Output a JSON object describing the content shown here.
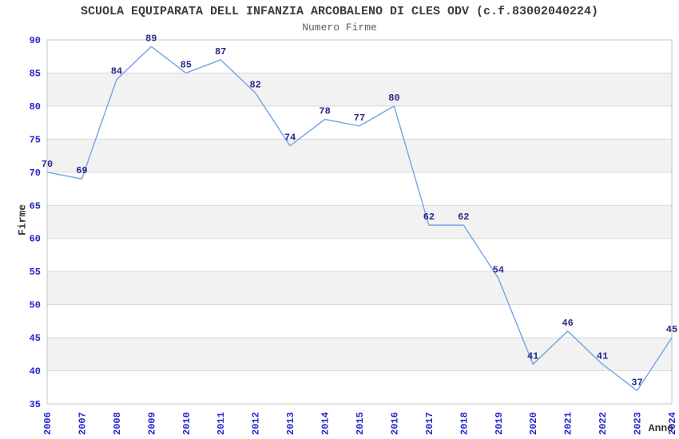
{
  "title": "SCUOLA EQUIPARATA DELL INFANZIA ARCOBALENO DI CLES ODV (c.f.83002040224)",
  "subtitle": "Numero Firme",
  "chart_data": {
    "type": "line",
    "title": "SCUOLA EQUIPARATA DELL INFANZIA ARCOBALENO DI CLES ODV (c.f.83002040224)",
    "subtitle": "Numero Firme",
    "xlabel": "Anno",
    "ylabel": "Firme",
    "categories": [
      "2006",
      "2007",
      "2008",
      "2009",
      "2010",
      "2011",
      "2012",
      "2013",
      "2014",
      "2015",
      "2016",
      "2017",
      "2018",
      "2019",
      "2020",
      "2021",
      "2022",
      "2023",
      "2024"
    ],
    "series": [
      {
        "name": "Numero Firme",
        "values": [
          70,
          69,
          84,
          89,
          85,
          87,
          82,
          74,
          78,
          77,
          80,
          62,
          62,
          54,
          41,
          46,
          41,
          37,
          45
        ]
      }
    ],
    "ylim": [
      35,
      90
    ],
    "ytick_step": 5,
    "grid": "horizontal",
    "band_fill": "alternating",
    "legend_position": "none",
    "point_labels": true
  },
  "colors": {
    "line": "#77a8e4",
    "tick_label": "#2424cc",
    "data_label": "#29298c",
    "band": "#f2f2f2",
    "gridline": "#d9d9d9",
    "plot_border": "#c5c5c5",
    "title": "#3c3c3c",
    "subtitle": "#5e5e5e",
    "axis_label": "#333333",
    "background": "#ffffff"
  }
}
